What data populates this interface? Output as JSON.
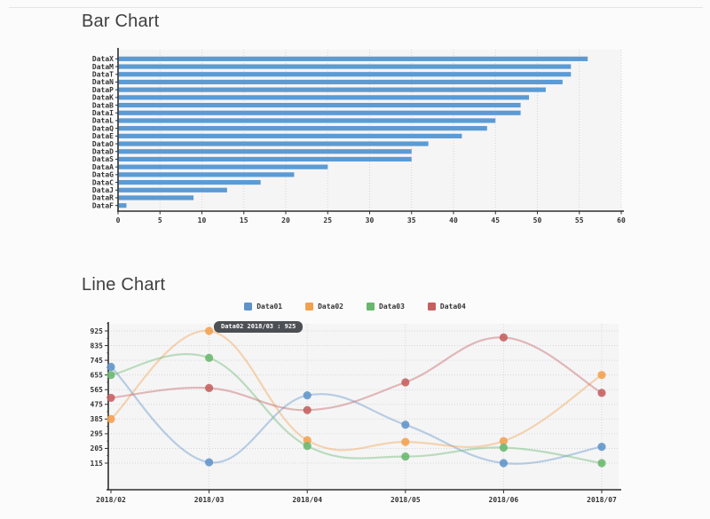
{
  "chart_data": [
    {
      "type": "bar",
      "title": "Bar Chart",
      "orientation": "horizontal",
      "categories": [
        "DataX",
        "DataM",
        "DataT",
        "DataN",
        "DataP",
        "DataK",
        "DataB",
        "DataI",
        "DataL",
        "DataQ",
        "DataE",
        "DataO",
        "DataD",
        "DataS",
        "DataA",
        "DataG",
        "DataC",
        "DataJ",
        "DataR",
        "DataF"
      ],
      "values": [
        56,
        54,
        54,
        53,
        51,
        49,
        48,
        48,
        45,
        44,
        41,
        37,
        35,
        35,
        25,
        21,
        17,
        13,
        9,
        1
      ],
      "xlabel": "",
      "ylabel": "",
      "xlim": [
        0,
        60
      ],
      "x_ticks": [
        0,
        5,
        10,
        15,
        20,
        25,
        30,
        35,
        40,
        45,
        50,
        55,
        60
      ],
      "bar_color": "#5b9bd5",
      "grid": "vertical dotted",
      "legend_position": "none"
    },
    {
      "type": "line",
      "title": "Line Chart",
      "x": [
        "2018/02",
        "2018/03",
        "2018/04",
        "2018/05",
        "2018/06",
        "2018/07"
      ],
      "xlabel": "",
      "ylabel": "",
      "ylim": [
        115,
        925
      ],
      "y_ticks": [
        925,
        835,
        745,
        655,
        565,
        475,
        385,
        295,
        205,
        115
      ],
      "series": [
        {
          "name": "Data01",
          "color": "#6094c8",
          "values": [
            705,
            120,
            530,
            350,
            115,
            215
          ]
        },
        {
          "name": "Data02",
          "color": "#f2a14e",
          "values": [
            385,
            925,
            255,
            245,
            250,
            655
          ]
        },
        {
          "name": "Data03",
          "color": "#69b76d",
          "values": [
            655,
            760,
            220,
            155,
            210,
            115
          ]
        },
        {
          "name": "Data04",
          "color": "#c65f5f",
          "values": [
            515,
            575,
            440,
            610,
            885,
            545
          ]
        }
      ],
      "grid": "both dotted",
      "legend_position": "top-center",
      "tooltip": {
        "series": "Data02",
        "x": "2018/03",
        "value": 925,
        "text": "Data02 2018/03 : 925"
      }
    }
  ]
}
